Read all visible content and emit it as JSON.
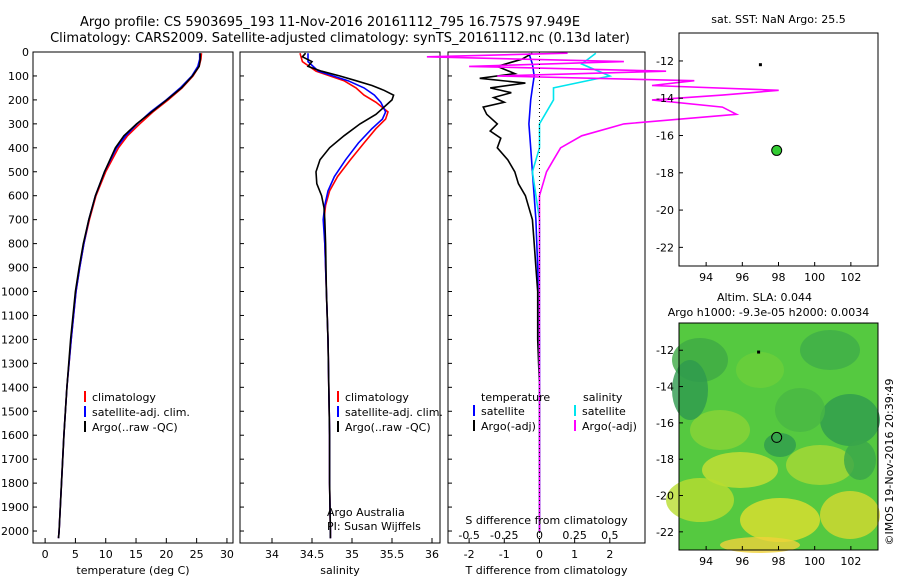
{
  "header": {
    "line1": "Argo profile: CS 5903695_193 11-Nov-2016 20161112_795 16.757S 97.949E",
    "line2": "Climatology: CARS2009. Satellite-adjusted climatology: synTS_20161112.nc (0.13d later)"
  },
  "footer_stamp": "©IMOS 19-Nov-2016 20:39:49",
  "colors": {
    "climatology": "#ff0000",
    "satellite": "#0000ff",
    "argo": "#000000",
    "sat_salinity": "#00e5ee",
    "argo_salinity": "#ff00ff",
    "dot": "#33cc33"
  },
  "chart_data": [
    {
      "type": "line",
      "xlabel": "temperature (deg C)",
      "ylabel": "",
      "xlim": [
        -2,
        31
      ],
      "ylim": [
        2050,
        0
      ],
      "xticks": [
        "0",
        "5",
        "10",
        "15",
        "20",
        "25",
        "30"
      ],
      "yticks": [
        "0",
        "100",
        "200",
        "300",
        "400",
        "500",
        "600",
        "700",
        "800",
        "900",
        "1000",
        "1100",
        "1200",
        "1300",
        "1400",
        "1500",
        "1600",
        "1700",
        "1800",
        "1900",
        "2000"
      ],
      "legend": [
        "climatology",
        "satellite-adj. clim.",
        "Argo(..raw -QC)"
      ],
      "series": [
        {
          "name": "climatology",
          "depth": [
            5,
            30,
            60,
            100,
            150,
            200,
            250,
            300,
            350,
            400,
            500,
            600,
            700,
            800,
            900,
            1000,
            1200,
            1400,
            1600,
            1800,
            2000,
            2030
          ],
          "values": [
            25.8,
            25.7,
            25.4,
            24.4,
            22.6,
            20.3,
            17.8,
            15.6,
            13.6,
            12.1,
            10.0,
            8.4,
            7.3,
            6.4,
            5.7,
            5.1,
            4.3,
            3.6,
            3.1,
            2.7,
            2.3,
            2.2
          ]
        },
        {
          "name": "satellite-adj. clim.",
          "depth": [
            5,
            30,
            60,
            100,
            150,
            200,
            250,
            300,
            350,
            400,
            500,
            600,
            700,
            800,
            900,
            1000,
            1200,
            1400,
            1600,
            1800,
            2000,
            2030
          ],
          "values": [
            25.5,
            25.5,
            25.2,
            24.2,
            22.3,
            20.0,
            17.4,
            15.2,
            13.3,
            11.8,
            9.8,
            8.3,
            7.2,
            6.4,
            5.7,
            5.1,
            4.3,
            3.6,
            3.1,
            2.7,
            2.3,
            2.2
          ]
        },
        {
          "name": "Argo(..raw -QC)",
          "depth": [
            5,
            30,
            60,
            100,
            150,
            200,
            250,
            300,
            350,
            400,
            500,
            600,
            700,
            800,
            900,
            1000,
            1200,
            1400,
            1600,
            1800,
            2000,
            2030
          ],
          "values": [
            25.6,
            25.6,
            25.4,
            24.3,
            22.5,
            20.1,
            17.6,
            15.1,
            13.0,
            11.6,
            9.8,
            8.3,
            7.2,
            6.3,
            5.6,
            5.0,
            4.2,
            3.6,
            3.1,
            2.7,
            2.3,
            2.2
          ]
        }
      ]
    },
    {
      "type": "line",
      "xlabel": "salinity",
      "xlim": [
        33.6,
        36.1
      ],
      "ylim": [
        2050,
        0
      ],
      "xticks": [
        "34",
        "34.5",
        "35",
        "35.5",
        "36"
      ],
      "legend": [
        "climatology",
        "satellite-adj. clim.",
        "Argo(..raw -QC)"
      ],
      "annotation": [
        "Argo Australia",
        "PI: Susan Wijffels"
      ],
      "series": [
        {
          "name": "climatology",
          "depth": [
            5,
            40,
            80,
            120,
            150,
            180,
            210,
            250,
            280,
            320,
            380,
            450,
            520,
            580,
            640,
            700,
            800,
            1000,
            1200,
            1400,
            1600,
            1800,
            2000,
            2030
          ],
          "values": [
            34.35,
            34.38,
            34.55,
            34.9,
            35.05,
            35.15,
            35.3,
            35.45,
            35.42,
            35.3,
            35.15,
            34.98,
            34.82,
            34.72,
            34.67,
            34.65,
            34.66,
            34.68,
            34.7,
            34.71,
            34.72,
            34.72,
            34.73,
            34.73
          ]
        },
        {
          "name": "satellite-adj. clim.",
          "depth": [
            5,
            40,
            80,
            120,
            150,
            180,
            210,
            250,
            280,
            320,
            380,
            450,
            520,
            580,
            640,
            700,
            800,
            1000,
            1200,
            1400,
            1600,
            1800,
            2000,
            2030
          ],
          "values": [
            34.45,
            34.45,
            34.58,
            34.95,
            35.15,
            35.28,
            35.36,
            35.42,
            35.38,
            35.25,
            35.08,
            34.92,
            34.78,
            34.7,
            34.66,
            34.64,
            34.66,
            34.68,
            34.7,
            34.71,
            34.72,
            34.72,
            34.73,
            34.73
          ]
        },
        {
          "name": "Argo(..raw -QC)",
          "depth": [
            5,
            20,
            40,
            60,
            80,
            100,
            120,
            140,
            160,
            180,
            200,
            230,
            260,
            300,
            350,
            400,
            450,
            500,
            550,
            600,
            650,
            700,
            800,
            1000,
            1200,
            1400,
            1600,
            1800,
            2000,
            2030
          ],
          "values": [
            34.42,
            34.38,
            34.5,
            34.45,
            34.62,
            34.85,
            35.05,
            35.25,
            35.4,
            35.52,
            35.5,
            35.4,
            35.3,
            35.1,
            34.9,
            34.72,
            34.6,
            34.55,
            34.56,
            34.62,
            34.65,
            34.66,
            34.67,
            34.68,
            34.7,
            34.71,
            34.72,
            34.72,
            34.73,
            34.73
          ]
        }
      ]
    },
    {
      "type": "line",
      "xlabel": "T difference from climatology",
      "top_label": "S difference from climatology",
      "xlim": [
        -2.6,
        3.0
      ],
      "ylim": [
        2050,
        0
      ],
      "xticks": [
        "-2",
        "-1",
        "0",
        "1",
        "2"
      ],
      "top_xticks": [
        "-0.5",
        "-0.25",
        "0",
        "0.25",
        "0.5"
      ],
      "legend_headers": [
        "temperature",
        "salinity"
      ],
      "legend": [
        "satellite",
        "Argo(-adj)",
        "satellite",
        "Argo(-adj)"
      ],
      "series": [
        {
          "name": "satellite",
          "depth": [
            5,
            50,
            100,
            150,
            200,
            300,
            400,
            500,
            700,
            900,
            1200,
            1500,
            1800,
            2000
          ],
          "values": [
            -0.3,
            -0.2,
            -0.15,
            -0.2,
            -0.25,
            -0.3,
            -0.25,
            -0.2,
            -0.1,
            -0.05,
            0,
            0,
            0,
            0
          ]
        },
        {
          "name": "Argo(-adj)",
          "depth": [
            5,
            30,
            60,
            90,
            110,
            130,
            150,
            170,
            190,
            210,
            230,
            260,
            300,
            330,
            360,
            400,
            450,
            500,
            550,
            600,
            650,
            700,
            800,
            900,
            1000,
            1200,
            1400,
            1600,
            1800,
            2000
          ],
          "values": [
            -0.2,
            -0.5,
            -1.2,
            -0.7,
            -1.7,
            -0.4,
            -1.4,
            -0.8,
            -1.3,
            -1.0,
            -1.6,
            -1.5,
            -1.2,
            -1.4,
            -1.1,
            -1.2,
            -0.9,
            -0.7,
            -0.6,
            -0.4,
            -0.3,
            -0.2,
            -0.15,
            -0.1,
            -0.05,
            -0.05,
            0,
            0,
            0,
            0
          ]
        },
        {
          "name": "satellite",
          "depth": [
            5,
            50,
            100,
            150,
            200,
            300,
            400,
            500,
            700,
            900,
            1200,
            1500,
            1800,
            2000
          ],
          "values": [
            0.4,
            0.3,
            0.5,
            0.1,
            0.1,
            0.0,
            0.0,
            -0.05,
            0,
            0,
            0,
            0,
            0,
            0
          ]
        },
        {
          "name": "Argo(-adj)",
          "depth": [
            5,
            20,
            40,
            60,
            80,
            100,
            120,
            140,
            160,
            180,
            200,
            230,
            260,
            300,
            350,
            400,
            450,
            500,
            600,
            700,
            800,
            1000,
            1200,
            1500,
            1800,
            2000
          ],
          "values": [
            0.2,
            -0.8,
            0.6,
            -0.5,
            0.9,
            -0.3,
            1.1,
            0.8,
            1.7,
            1.3,
            0.8,
            1.3,
            1.4,
            0.6,
            0.3,
            0.15,
            0.1,
            0.05,
            0,
            0,
            0,
            0,
            0,
            0,
            0,
            0
          ]
        }
      ]
    },
    {
      "type": "scatter",
      "title": "sat. SST: NaN Argo: 25.5",
      "xlim": [
        92.5,
        103.5
      ],
      "ylim": [
        -23,
        -10.5
      ],
      "xticks": [
        "94",
        "96",
        "98",
        "100",
        "102"
      ],
      "yticks": [
        "-12",
        "-14",
        "-16",
        "-18",
        "-20",
        "-22"
      ],
      "points": [
        {
          "lon": 97.9,
          "lat": -16.8
        },
        {
          "lon": 97.0,
          "lat": -12.2
        }
      ]
    },
    {
      "type": "heatmap",
      "title": "Altim. SLA: 0.044",
      "subtitle": "Argo h1000: -9.3e-05 h2000: 0.0034",
      "xlim": [
        92.5,
        103.5
      ],
      "ylim": [
        -23,
        -10.5
      ],
      "xticks": [
        "94",
        "96",
        "98",
        "100",
        "102"
      ],
      "yticks": [
        "-12",
        "-14",
        "-16",
        "-18",
        "-20",
        "-22"
      ],
      "points": [
        {
          "lon": 97.9,
          "lat": -16.8
        },
        {
          "lon": 96.9,
          "lat": -12.1
        }
      ]
    }
  ]
}
